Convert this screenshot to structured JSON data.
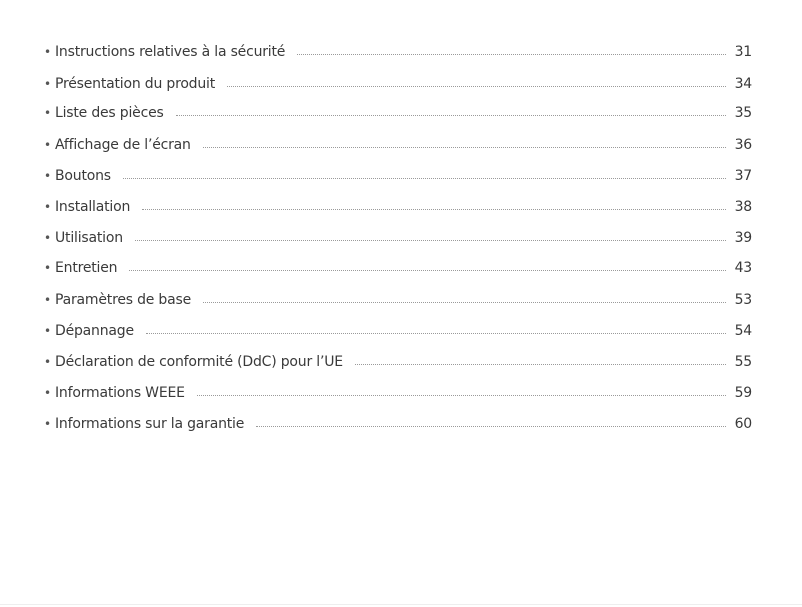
{
  "toc": [
    {
      "title": "Instructions relatives à la sécurité",
      "page": "31"
    },
    {
      "title": "Présentation du produit",
      "page": "34"
    },
    {
      "title": "Liste des pièces",
      "page": "35"
    },
    {
      "title": "Affichage de l’écran",
      "page": "36"
    },
    {
      "title": "Boutons",
      "page": "37"
    },
    {
      "title": "Installation",
      "page": "38"
    },
    {
      "title": "Utilisation",
      "page": "39"
    },
    {
      "title": "Entretien",
      "page": "43"
    },
    {
      "title": "Paramètres de base",
      "page": "53"
    },
    {
      "title": "Dépannage",
      "page": "54"
    },
    {
      "title": "Déclaration de conformité (DdC) pour l’UE",
      "page": "55"
    },
    {
      "title": "Informations WEEE",
      "page": "59"
    },
    {
      "title": "Informations sur la garantie",
      "page": "60"
    }
  ],
  "bullet": "•"
}
